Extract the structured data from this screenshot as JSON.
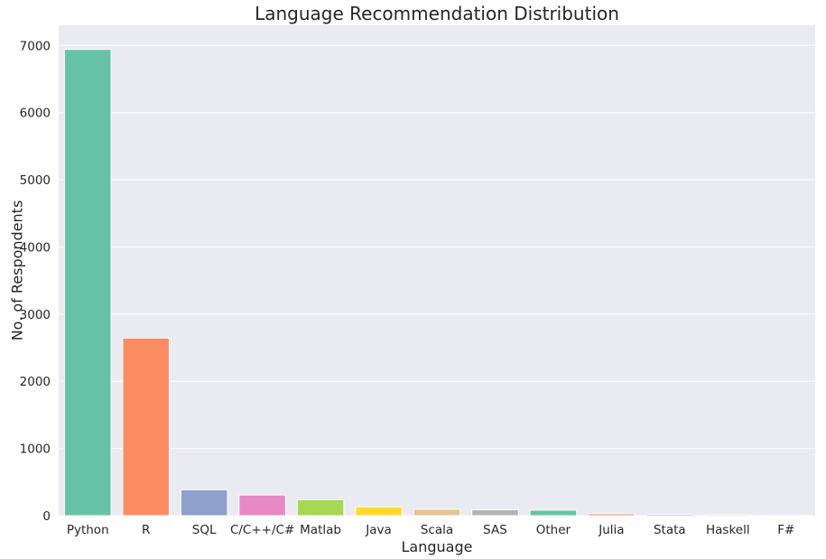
{
  "chart_data": {
    "type": "bar",
    "title": "Language Recommendation Distribution",
    "xlabel": "Language",
    "ylabel": "No. of Respondents",
    "categories": [
      "Python",
      "R",
      "SQL",
      "C/C++/C#",
      "Matlab",
      "Java",
      "Scala",
      "SAS",
      "Other",
      "Julia",
      "Stata",
      "Haskell",
      "F#"
    ],
    "values": [
      6941,
      2643,
      385,
      307,
      238,
      131,
      95,
      88,
      82,
      28,
      21,
      16,
      4
    ],
    "colors": [
      "#66c2a5",
      "#fc8d62",
      "#8da0cb",
      "#e78ac3",
      "#a6d854",
      "#ffd92f",
      "#e5c494",
      "#b3b3b3",
      "#66c2a5",
      "#fc8d62",
      "#8da0cb",
      "#e78ac3",
      "#a6d854"
    ],
    "ylim": [
      0,
      7300
    ],
    "yticks": [
      0,
      1000,
      2000,
      3000,
      4000,
      5000,
      6000,
      7000
    ],
    "grid": true,
    "background": "#eaeaf2"
  }
}
